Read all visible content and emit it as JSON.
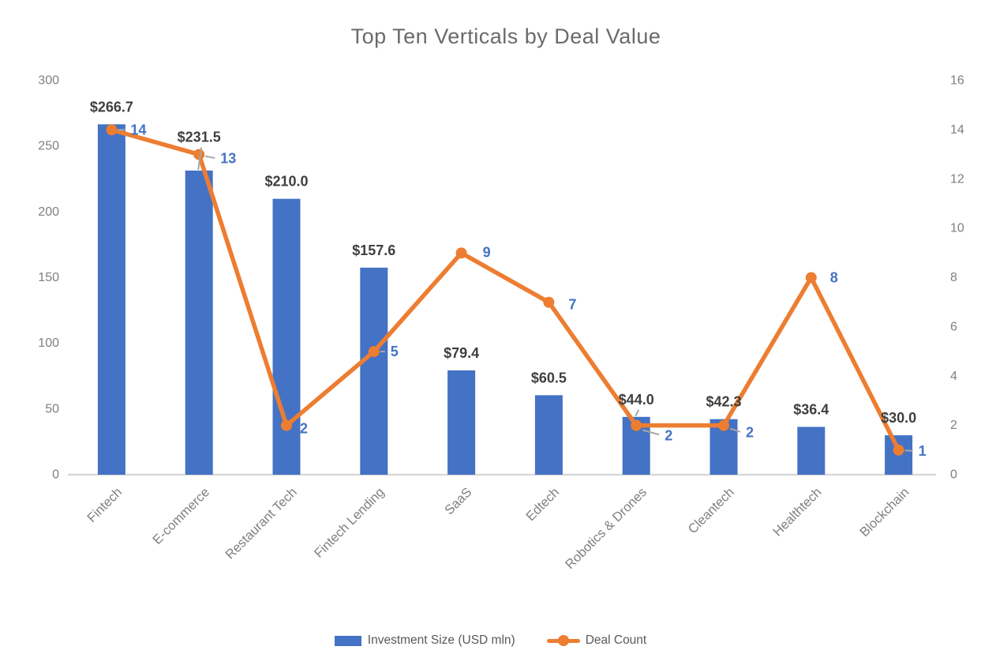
{
  "title": "Top Ten Verticals by Deal Value",
  "legend": {
    "bar": "Investment Size (USD mln)",
    "line": "Deal Count"
  },
  "colors": {
    "bar": "#4472C4",
    "line": "#ED7D31",
    "bar_label": "#3F3F3F",
    "line_label": "#4472C4",
    "axis_text": "#7F7F7F",
    "category_text": "#7F7F7F",
    "title_text": "#6A6A6A",
    "baseline": "#D9D9D9",
    "leader": "#A6A6A6"
  },
  "chart_data": {
    "type": "bar",
    "subtype": "combo-bar-line-dual-axis",
    "title": "Top Ten Verticals by Deal Value",
    "categories": [
      "Fintech",
      "E-commerce",
      "Restaurant Tech",
      "Fintech Lending",
      "SaaS",
      "Edtech",
      "Robotics & Drones",
      "Cleantech",
      "Healthtech",
      "Blockchain"
    ],
    "series": [
      {
        "name": "Investment Size (USD mln)",
        "type": "bar",
        "axis": "left",
        "values": [
          266.7,
          231.5,
          210.0,
          157.6,
          79.4,
          60.5,
          44.0,
          42.3,
          36.4,
          30.0
        ],
        "labels": [
          "$266.7",
          "$231.5",
          "$210.0",
          "$157.6",
          "$79.4",
          "$60.5",
          "$44.0",
          "$42.3",
          "$36.4",
          "$30.0"
        ]
      },
      {
        "name": "Deal Count",
        "type": "line",
        "axis": "right",
        "values": [
          14,
          13,
          2,
          5,
          9,
          7,
          2,
          2,
          8,
          1
        ],
        "labels": [
          "14",
          "13",
          "2",
          "5",
          "9",
          "7",
          "2",
          "2",
          "8",
          "1"
        ]
      }
    ],
    "left_axis": {
      "range": [
        0,
        300
      ],
      "ticks": [
        0,
        50,
        100,
        150,
        200,
        250,
        300
      ]
    },
    "right_axis": {
      "range": [
        0,
        16
      ],
      "ticks": [
        0,
        2,
        4,
        6,
        8,
        10,
        12,
        14,
        16
      ]
    },
    "grid": false,
    "legend_position": "bottom",
    "xlabel": "",
    "ylabel": ""
  }
}
